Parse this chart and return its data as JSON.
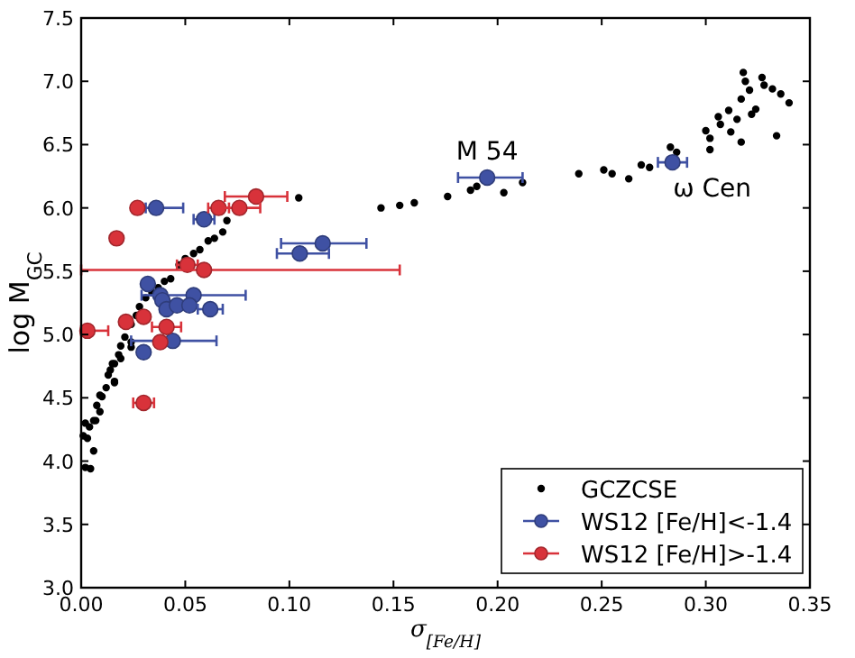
{
  "chart_data": {
    "type": "scatter",
    "xlabel": "σ$_{[Fe/H]}$",
    "ylabel": "log M$_{GC}$",
    "xlim": [
      0,
      0.35
    ],
    "ylim": [
      3.0,
      7.5
    ],
    "xticks": [
      {
        "value": 0,
        "label": "0.00"
      },
      {
        "value": 0.05,
        "label": "0.05"
      },
      {
        "value": 0.1,
        "label": "0.10"
      },
      {
        "value": 0.15,
        "label": "0.15"
      },
      {
        "value": 0.2,
        "label": "0.20"
      },
      {
        "value": 0.25,
        "label": "0.25"
      },
      {
        "value": 0.3,
        "label": "0.30"
      },
      {
        "value": 0.35,
        "label": "0.35"
      }
    ],
    "yticks": [
      {
        "value": 3,
        "label": "3.0"
      },
      {
        "value": 3.5,
        "label": "3.5"
      },
      {
        "value": 4,
        "label": "4.0"
      },
      {
        "value": 4.5,
        "label": "4.5"
      },
      {
        "value": 5,
        "label": "5.0"
      },
      {
        "value": 5.5,
        "label": "5.5"
      },
      {
        "value": 6,
        "label": "6.0"
      },
      {
        "value": 6.5,
        "label": "6.5"
      },
      {
        "value": 7,
        "label": "7.0"
      },
      {
        "value": 7.5,
        "label": "7.5"
      }
    ],
    "legend": "bottom right",
    "marker": "circle",
    "annotations": [
      {
        "text": "M 54",
        "x": 0.195,
        "y": 6.24
      },
      {
        "text": "ω Cen",
        "x": 0.284,
        "y": 6.36
      }
    ],
    "series": [
      {
        "name": "GCZCSE",
        "color": "#000000",
        "x": [
          0.002,
          0.001,
          0.002,
          0.003,
          0.004,
          0.006,
          0.0045,
          0.006,
          0.007,
          0.0075,
          0.009,
          0.009,
          0.01,
          0.012,
          0.013,
          0.015,
          0.014,
          0.016,
          0.016,
          0.016,
          0.018,
          0.019,
          0.019,
          0.021,
          0.024,
          0.024,
          0.024,
          0.0265,
          0.028,
          0.031,
          0.034,
          0.037,
          0.04,
          0.043,
          0.047,
          0.05,
          0.054,
          0.057,
          0.061,
          0.064,
          0.068,
          0.07,
          0.1045,
          0.144,
          0.153,
          0.16,
          0.176,
          0.187,
          0.19,
          0.203,
          0.212,
          0.239,
          0.251,
          0.255,
          0.263,
          0.269,
          0.273,
          0.283,
          0.286,
          0.3,
          0.302,
          0.302,
          0.306,
          0.307,
          0.311,
          0.312,
          0.315,
          0.317,
          0.318,
          0.319,
          0.317,
          0.321,
          0.322,
          0.324,
          0.327,
          0.328,
          0.332,
          0.334,
          0.336,
          0.34
        ],
        "values": [
          3.95,
          4.2,
          4.3,
          4.18,
          4.27,
          4.08,
          3.94,
          4.32,
          4.32,
          4.44,
          4.39,
          4.52,
          4.51,
          4.58,
          4.68,
          4.77,
          4.72,
          4.63,
          4.62,
          4.77,
          4.84,
          4.91,
          4.81,
          4.98,
          5.08,
          4.9,
          4.94,
          5.15,
          5.22,
          5.29,
          5.33,
          5.37,
          5.42,
          5.44,
          5.55,
          5.6,
          5.64,
          5.67,
          5.74,
          5.76,
          5.81,
          5.9,
          6.08,
          6.0,
          6.02,
          6.04,
          6.09,
          6.14,
          6.17,
          6.12,
          6.2,
          6.27,
          6.3,
          6.27,
          6.23,
          6.34,
          6.32,
          6.48,
          6.44,
          6.61,
          6.55,
          6.46,
          6.72,
          6.66,
          6.77,
          6.6,
          6.7,
          6.86,
          7.07,
          7.0,
          6.52,
          6.93,
          6.74,
          6.78,
          7.03,
          6.97,
          6.94,
          6.57,
          6.9,
          6.83
        ]
      },
      {
        "name": "WS12 [Fe/H]<-1.4",
        "color": "#3f51a3",
        "x": [
          0.036,
          0.059,
          0.116,
          0.105,
          0.032,
          0.038,
          0.054,
          0.039,
          0.041,
          0.046,
          0.052,
          0.062,
          0.044,
          0.03,
          0.195,
          0.284
        ],
        "values": [
          6.0,
          5.91,
          5.72,
          5.64,
          5.4,
          5.31,
          5.31,
          5.27,
          5.2,
          5.23,
          5.23,
          5.2,
          4.95,
          4.86,
          6.24,
          6.36
        ],
        "xerrors": [
          [
            0.031,
            0.049
          ],
          0.005,
          [
            0.096,
            0.137
          ],
          [
            0.094,
            0.119
          ],
          null,
          null,
          [
            0.029,
            0.079
          ],
          null,
          null,
          null,
          null,
          0.006,
          [
            0.024,
            0.065
          ],
          null,
          [
            0.181,
            0.212
          ],
          0.007
        ]
      },
      {
        "name": "WS12 [Fe/H]>-1.4",
        "color": "#d8323a",
        "x": [
          0.084,
          0.027,
          0.066,
          0.076,
          0.017,
          0.051,
          0.059,
          0.0215,
          0.03,
          0.041,
          0.038,
          0.003,
          0.03
        ],
        "values": [
          6.09,
          6.0,
          6.0,
          6.0,
          5.76,
          5.55,
          5.51,
          5.1,
          5.14,
          5.06,
          4.94,
          5.03,
          4.46
        ],
        "xerrors": [
          0.015,
          null,
          0.005,
          0.01,
          null,
          0.005,
          [
            0.0,
            0.153
          ],
          null,
          null,
          0.007,
          null,
          [
            0.0,
            0.013
          ],
          0.005
        ]
      }
    ]
  }
}
